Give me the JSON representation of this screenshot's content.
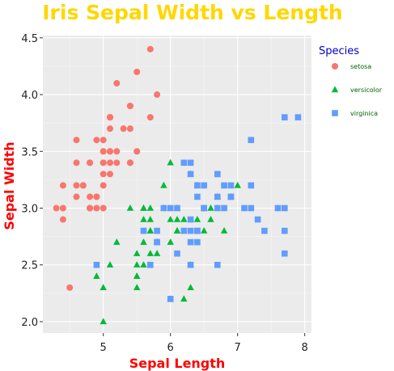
{
  "chart_data": {
    "type": "scatter",
    "title": "Iris Sepal Width vs Length",
    "xlabel": "Sepal Length",
    "ylabel": "Sepal Width",
    "xlim": [
      4.1,
      8.1
    ],
    "ylim": [
      1.9,
      4.52
    ],
    "xticks": [
      "5",
      "6",
      "7",
      "8"
    ],
    "xtick_values": [
      5,
      6,
      7,
      8
    ],
    "yticks": [
      "2.0",
      "2.5",
      "3.0",
      "3.5",
      "4.0",
      "4.5"
    ],
    "ytick_values": [
      2.0,
      2.5,
      3.0,
      3.5,
      4.0,
      4.5
    ],
    "grid": true,
    "background": "#ebebeb",
    "legend": {
      "title": "Species",
      "placement": "right"
    },
    "series": [
      {
        "name": "setosa",
        "color": "#F8766D",
        "marker": "circle",
        "points": [
          [
            5.1,
            3.5
          ],
          [
            4.9,
            3.0
          ],
          [
            4.7,
            3.2
          ],
          [
            4.6,
            3.1
          ],
          [
            5.0,
            3.6
          ],
          [
            5.4,
            3.9
          ],
          [
            4.6,
            3.4
          ],
          [
            5.0,
            3.4
          ],
          [
            4.4,
            2.9
          ],
          [
            4.9,
            3.1
          ],
          [
            5.4,
            3.7
          ],
          [
            4.8,
            3.4
          ],
          [
            4.8,
            3.0
          ],
          [
            4.3,
            3.0
          ],
          [
            5.8,
            4.0
          ],
          [
            5.7,
            4.4
          ],
          [
            5.4,
            3.9
          ],
          [
            5.1,
            3.5
          ],
          [
            5.7,
            3.8
          ],
          [
            5.1,
            3.8
          ],
          [
            5.4,
            3.4
          ],
          [
            5.1,
            3.7
          ],
          [
            4.6,
            3.6
          ],
          [
            5.1,
            3.3
          ],
          [
            4.8,
            3.4
          ],
          [
            5.0,
            3.0
          ],
          [
            5.0,
            3.4
          ],
          [
            5.2,
            3.5
          ],
          [
            5.2,
            3.4
          ],
          [
            4.7,
            3.2
          ],
          [
            4.8,
            3.1
          ],
          [
            5.4,
            3.4
          ],
          [
            5.2,
            4.1
          ],
          [
            5.5,
            4.2
          ],
          [
            4.9,
            3.1
          ],
          [
            5.0,
            3.2
          ],
          [
            5.5,
            3.5
          ],
          [
            4.9,
            3.6
          ],
          [
            4.4,
            3.0
          ],
          [
            5.1,
            3.4
          ],
          [
            5.0,
            3.5
          ],
          [
            4.5,
            2.3
          ],
          [
            4.4,
            3.2
          ],
          [
            5.0,
            3.5
          ],
          [
            5.1,
            3.8
          ],
          [
            4.8,
            3.0
          ],
          [
            5.1,
            3.8
          ],
          [
            4.6,
            3.2
          ],
          [
            5.3,
            3.7
          ],
          [
            5.0,
            3.3
          ]
        ]
      },
      {
        "name": "versicolor",
        "color": "#00BA38",
        "marker": "triangle",
        "points": [
          [
            7.0,
            3.2
          ],
          [
            6.4,
            3.2
          ],
          [
            6.9,
            3.1
          ],
          [
            5.5,
            2.3
          ],
          [
            6.5,
            2.8
          ],
          [
            5.7,
            2.8
          ],
          [
            6.3,
            3.3
          ],
          [
            4.9,
            2.4
          ],
          [
            6.6,
            2.9
          ],
          [
            5.2,
            2.7
          ],
          [
            5.0,
            2.0
          ],
          [
            5.9,
            3.0
          ],
          [
            6.0,
            2.2
          ],
          [
            6.1,
            2.9
          ],
          [
            5.6,
            2.9
          ],
          [
            6.7,
            3.1
          ],
          [
            5.6,
            3.0
          ],
          [
            5.8,
            2.7
          ],
          [
            6.2,
            2.2
          ],
          [
            5.6,
            2.5
          ],
          [
            5.9,
            3.2
          ],
          [
            6.1,
            2.8
          ],
          [
            6.3,
            2.5
          ],
          [
            6.1,
            2.8
          ],
          [
            6.4,
            2.9
          ],
          [
            6.6,
            3.0
          ],
          [
            6.8,
            2.8
          ],
          [
            6.7,
            3.0
          ],
          [
            6.0,
            2.9
          ],
          [
            5.7,
            2.6
          ],
          [
            5.5,
            2.4
          ],
          [
            5.5,
            2.4
          ],
          [
            5.8,
            2.7
          ],
          [
            6.0,
            2.7
          ],
          [
            5.4,
            3.0
          ],
          [
            6.0,
            3.4
          ],
          [
            6.7,
            3.1
          ],
          [
            6.3,
            2.3
          ],
          [
            5.6,
            3.0
          ],
          [
            5.5,
            2.5
          ],
          [
            5.5,
            2.6
          ],
          [
            6.1,
            3.0
          ],
          [
            5.8,
            2.6
          ],
          [
            5.0,
            2.3
          ],
          [
            5.6,
            2.7
          ],
          [
            5.7,
            3.0
          ],
          [
            5.7,
            2.9
          ],
          [
            6.2,
            2.9
          ],
          [
            5.1,
            2.5
          ],
          [
            5.7,
            2.8
          ]
        ]
      },
      {
        "name": "virginica",
        "color": "#619CFF",
        "marker": "square",
        "points": [
          [
            6.3,
            3.3
          ],
          [
            5.8,
            2.7
          ],
          [
            7.1,
            3.0
          ],
          [
            6.3,
            2.9
          ],
          [
            6.5,
            3.0
          ],
          [
            7.6,
            3.0
          ],
          [
            4.9,
            2.5
          ],
          [
            7.3,
            2.9
          ],
          [
            6.7,
            2.5
          ],
          [
            7.2,
            3.6
          ],
          [
            6.5,
            3.2
          ],
          [
            6.4,
            2.7
          ],
          [
            6.8,
            3.0
          ],
          [
            5.7,
            2.5
          ],
          [
            5.8,
            2.8
          ],
          [
            6.4,
            3.2
          ],
          [
            6.5,
            3.0
          ],
          [
            7.7,
            3.8
          ],
          [
            7.7,
            2.6
          ],
          [
            6.0,
            2.2
          ],
          [
            6.9,
            3.2
          ],
          [
            5.6,
            2.8
          ],
          [
            7.7,
            2.8
          ],
          [
            6.3,
            2.7
          ],
          [
            6.7,
            3.3
          ],
          [
            7.2,
            3.2
          ],
          [
            6.2,
            2.8
          ],
          [
            6.1,
            3.0
          ],
          [
            6.4,
            2.8
          ],
          [
            7.2,
            3.0
          ],
          [
            7.4,
            2.8
          ],
          [
            7.9,
            3.8
          ],
          [
            6.4,
            2.8
          ],
          [
            6.3,
            2.8
          ],
          [
            6.1,
            2.6
          ],
          [
            7.7,
            3.0
          ],
          [
            6.3,
            3.4
          ],
          [
            6.4,
            3.1
          ],
          [
            6.0,
            3.0
          ],
          [
            6.9,
            3.1
          ],
          [
            6.7,
            3.1
          ],
          [
            6.9,
            3.1
          ],
          [
            5.8,
            2.7
          ],
          [
            6.8,
            3.2
          ],
          [
            6.7,
            3.3
          ],
          [
            6.7,
            3.0
          ],
          [
            6.3,
            2.5
          ],
          [
            6.5,
            3.0
          ],
          [
            6.2,
            3.4
          ],
          [
            5.9,
            3.0
          ]
        ]
      }
    ]
  }
}
